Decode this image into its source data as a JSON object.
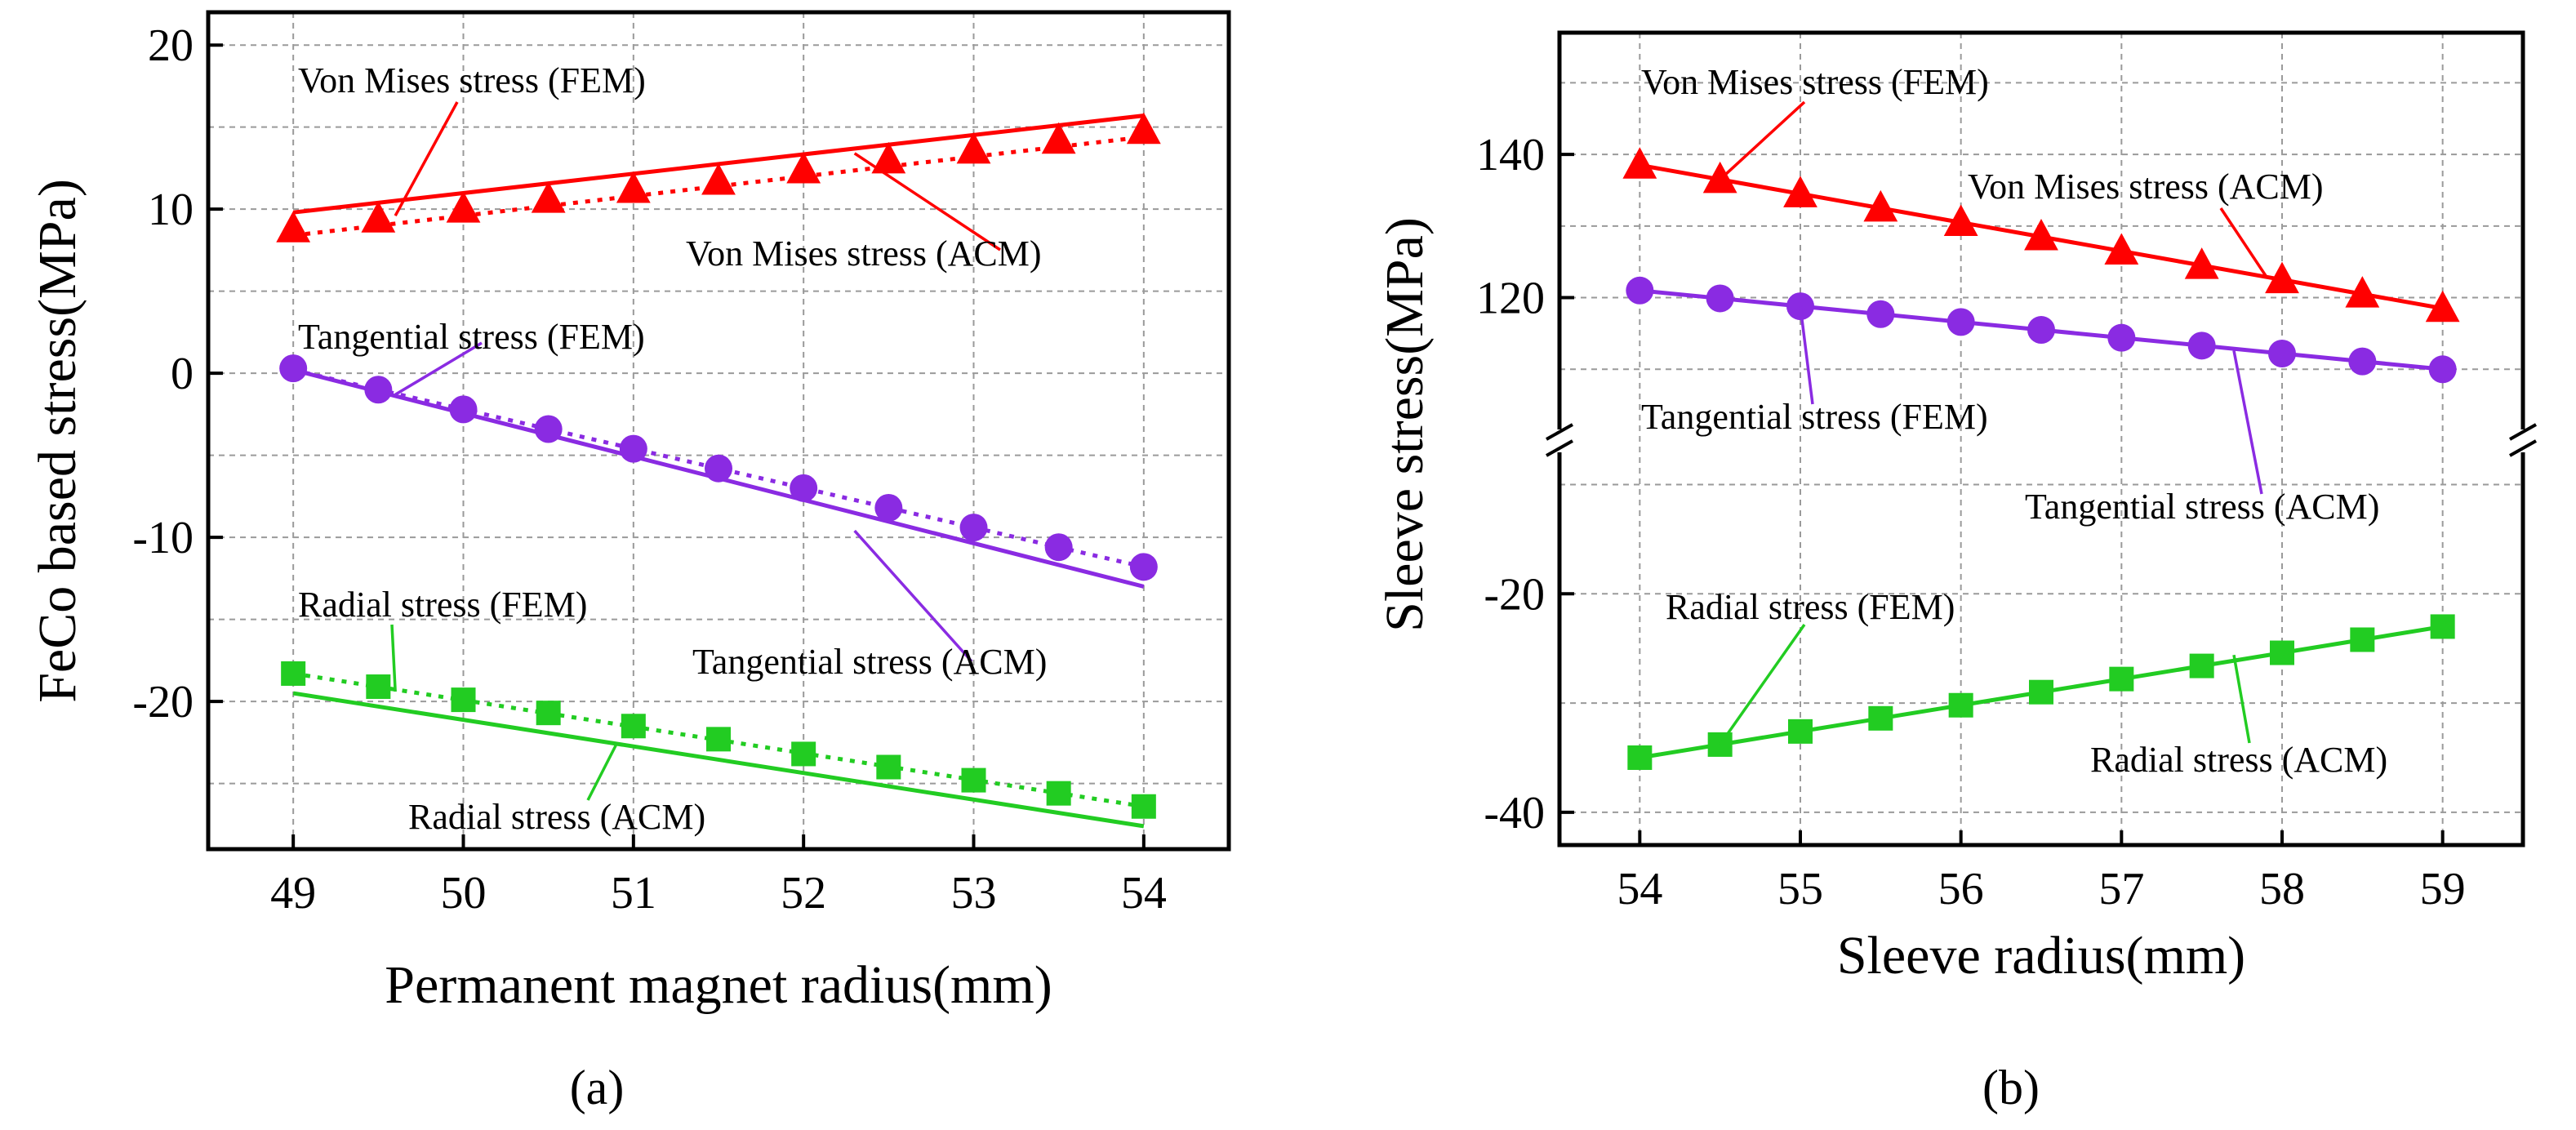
{
  "figure": {
    "panel_a_label": "(a)",
    "panel_b_label": "(b)"
  },
  "chart_data": [
    {
      "panel": "a",
      "type": "line",
      "xlabel": "Permanent magnet radius(mm)",
      "ylabel": "FeCo based stress(MPa)",
      "xlim": [
        48.5,
        54.5
      ],
      "ylim": [
        -29,
        22
      ],
      "xticks": [
        49,
        50,
        51,
        52,
        53,
        54
      ],
      "yticks": [
        20,
        10,
        0,
        -10,
        -20
      ],
      "grid": true,
      "series": [
        {
          "name": "Von Mises stress (ACM) line",
          "style": "solid",
          "color": "#ff0000",
          "x": [
            49,
            54
          ],
          "y": [
            9.8,
            15.7
          ]
        },
        {
          "name": "Von Mises stress dotted",
          "style": "dotted",
          "color": "#ff0000",
          "x": [
            49,
            54
          ],
          "y": [
            8.4,
            14.4
          ]
        },
        {
          "name": "Von Mises stress (FEM)",
          "style": "markers",
          "marker": "triangle",
          "color": "#ff0000",
          "x": [
            49,
            49.5,
            50,
            50.5,
            51,
            51.5,
            52,
            52.5,
            53,
            53.5,
            54
          ],
          "y": [
            8.8,
            9.4,
            10.0,
            10.6,
            11.2,
            11.7,
            12.4,
            13.0,
            13.6,
            14.2,
            14.8
          ]
        },
        {
          "name": "Tangential stress (ACM) line",
          "style": "solid",
          "color": "#8a2be2",
          "x": [
            49,
            54
          ],
          "y": [
            0.2,
            -13.0
          ]
        },
        {
          "name": "Tangential stress dotted",
          "style": "dotted",
          "color": "#8a2be2",
          "x": [
            49,
            54
          ],
          "y": [
            0.2,
            -11.8
          ]
        },
        {
          "name": "Tangential stress (FEM)",
          "style": "markers",
          "marker": "circle",
          "color": "#8a2be2",
          "x": [
            49,
            49.5,
            50,
            50.5,
            51,
            51.5,
            52,
            52.5,
            53,
            53.5,
            54
          ],
          "y": [
            0.3,
            -1.0,
            -2.2,
            -3.4,
            -4.6,
            -5.8,
            -7.0,
            -8.2,
            -9.4,
            -10.6,
            -11.8
          ]
        },
        {
          "name": "Radial stress (ACM) line",
          "style": "solid",
          "color": "#22cc22",
          "x": [
            49,
            54
          ],
          "y": [
            -19.5,
            -27.6
          ]
        },
        {
          "name": "Radial stress dotted",
          "style": "dotted",
          "color": "#22cc22",
          "x": [
            49,
            54
          ],
          "y": [
            -18.3,
            -26.4
          ]
        },
        {
          "name": "Radial stress (FEM)",
          "style": "markers",
          "marker": "square",
          "color": "#22cc22",
          "x": [
            49,
            49.5,
            50,
            50.5,
            51,
            51.5,
            52,
            52.5,
            53,
            53.5,
            54
          ],
          "y": [
            -18.3,
            -19.1,
            -19.9,
            -20.7,
            -21.5,
            -22.3,
            -23.2,
            -24.0,
            -24.8,
            -25.6,
            -26.4
          ]
        }
      ],
      "annotations": [
        {
          "text": "Von Mises stress (FEM)",
          "point": [
            49.6,
            9.6
          ]
        },
        {
          "text": "Von Mises stress (ACM)",
          "point": [
            52.3,
            13.4
          ]
        },
        {
          "text": "Tangential stress (FEM)",
          "point": [
            49.6,
            -1.3
          ]
        },
        {
          "text": "Tangential stress (ACM)",
          "point": [
            52.3,
            -9.6
          ]
        },
        {
          "text": "Radial stress (FEM)",
          "point": [
            49.6,
            -19.4
          ]
        },
        {
          "text": "Radial stress (ACM)",
          "point": [
            50.9,
            -22.6
          ]
        }
      ]
    },
    {
      "panel": "b",
      "type": "line",
      "xlabel": "Sleeve radius(mm)",
      "ylabel": "Sleeve stress(MPa)",
      "xlim": [
        53.5,
        59.5
      ],
      "axis_break": true,
      "upper_ylim": [
        100,
        157
      ],
      "upper_yticks": [
        140,
        120
      ],
      "lower_ylim": [
        -43,
        -6
      ],
      "lower_yticks": [
        -20,
        -40
      ],
      "xticks": [
        54,
        55,
        56,
        57,
        58,
        59
      ],
      "grid": true,
      "series": [
        {
          "name": "Von Mises stress (ACM) line",
          "style": "solid",
          "color": "#ff0000",
          "x": [
            54,
            59
          ],
          "y": [
            138.5,
            118.5
          ]
        },
        {
          "name": "Von Mises stress (FEM)",
          "style": "markers",
          "marker": "triangle",
          "color": "#ff0000",
          "x": [
            54,
            54.5,
            55,
            55.5,
            56,
            56.5,
            57,
            57.5,
            58,
            58.5,
            59
          ],
          "y": [
            138.5,
            136.5,
            134.5,
            132.5,
            130.5,
            128.5,
            126.5,
            124.5,
            122.5,
            120.5,
            118.5
          ]
        },
        {
          "name": "Tangential stress (ACM) line",
          "style": "solid",
          "color": "#8a2be2",
          "x": [
            54,
            59
          ],
          "y": [
            121.0,
            110.0
          ]
        },
        {
          "name": "Tangential stress (FEM)",
          "style": "markers",
          "marker": "circle",
          "color": "#8a2be2",
          "x": [
            54,
            54.5,
            55,
            55.5,
            56,
            56.5,
            57,
            57.5,
            58,
            58.5,
            59
          ],
          "y": [
            121.0,
            119.9,
            118.8,
            117.7,
            116.6,
            115.5,
            114.4,
            113.3,
            112.2,
            111.1,
            110.0
          ]
        },
        {
          "name": "Radial stress (ACM) line",
          "style": "solid",
          "color": "#22cc22",
          "x": [
            54,
            59
          ],
          "y": [
            -35.0,
            -23.0
          ]
        },
        {
          "name": "Radial stress (FEM)",
          "style": "markers",
          "marker": "square",
          "color": "#22cc22",
          "x": [
            54,
            54.5,
            55,
            55.5,
            56,
            56.5,
            57,
            57.5,
            58,
            58.5,
            59
          ],
          "y": [
            -35.0,
            -33.8,
            -32.6,
            -31.4,
            -30.2,
            -29.0,
            -27.8,
            -26.6,
            -25.4,
            -24.2,
            -23.0
          ]
        }
      ],
      "annotations": [
        {
          "text": "Von Mises stress (FEM)",
          "point": [
            54.5,
            136.5
          ]
        },
        {
          "text": "Von Mises stress (ACM)",
          "point": [
            57.9,
            123.0
          ]
        },
        {
          "text": "Tangential stress (FEM)",
          "point": [
            55.0,
            118.8
          ]
        },
        {
          "text": "Tangential stress (ACM)",
          "point": [
            57.7,
            112.6
          ]
        },
        {
          "text": "Radial stress (FEM)",
          "point": [
            54.5,
            -33.8
          ]
        },
        {
          "text": "Radial stress (ACM)",
          "point": [
            57.7,
            -25.6
          ]
        }
      ]
    }
  ]
}
